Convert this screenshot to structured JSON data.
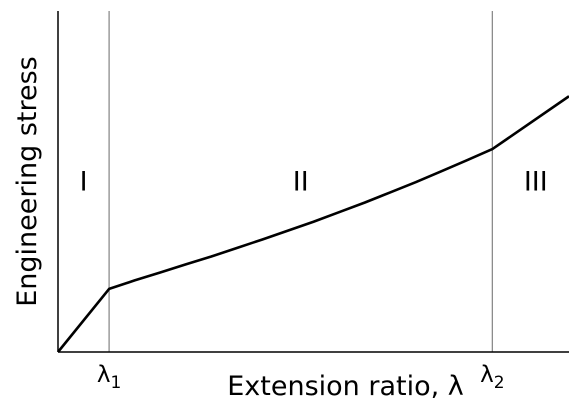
{
  "chart_data": {
    "type": "line",
    "title": "",
    "xlabel": "Extension ratio, λ",
    "ylabel": "Engineering stress",
    "xlim": [
      0,
      10
    ],
    "ylim": [
      0,
      10
    ],
    "grid": false,
    "x_ticks": [
      {
        "label_base": "λ",
        "label_sub": "1",
        "x": 1.0
      },
      {
        "label_base": "λ",
        "label_sub": "2",
        "x": 8.5
      }
    ],
    "boundaries": [
      1.0,
      8.5
    ],
    "regions": [
      {
        "label": "I",
        "x": 0.5,
        "y": 5.0
      },
      {
        "label": "II",
        "x": 4.75,
        "y": 5.0
      },
      {
        "label": "III",
        "x": 9.35,
        "y": 5.0
      }
    ],
    "series": [
      {
        "x": [
          0.0,
          1.0,
          1.5,
          2.0,
          2.5,
          3.0,
          3.5,
          4.0,
          4.5,
          5.0,
          5.5,
          6.0,
          6.5,
          7.0,
          7.5,
          8.0,
          8.5,
          10.0
        ],
        "y": [
          0.0,
          1.85,
          2.1,
          2.33,
          2.57,
          2.8,
          3.05,
          3.3,
          3.56,
          3.82,
          4.1,
          4.38,
          4.68,
          4.98,
          5.3,
          5.62,
          5.95,
          7.5
        ]
      }
    ]
  }
}
